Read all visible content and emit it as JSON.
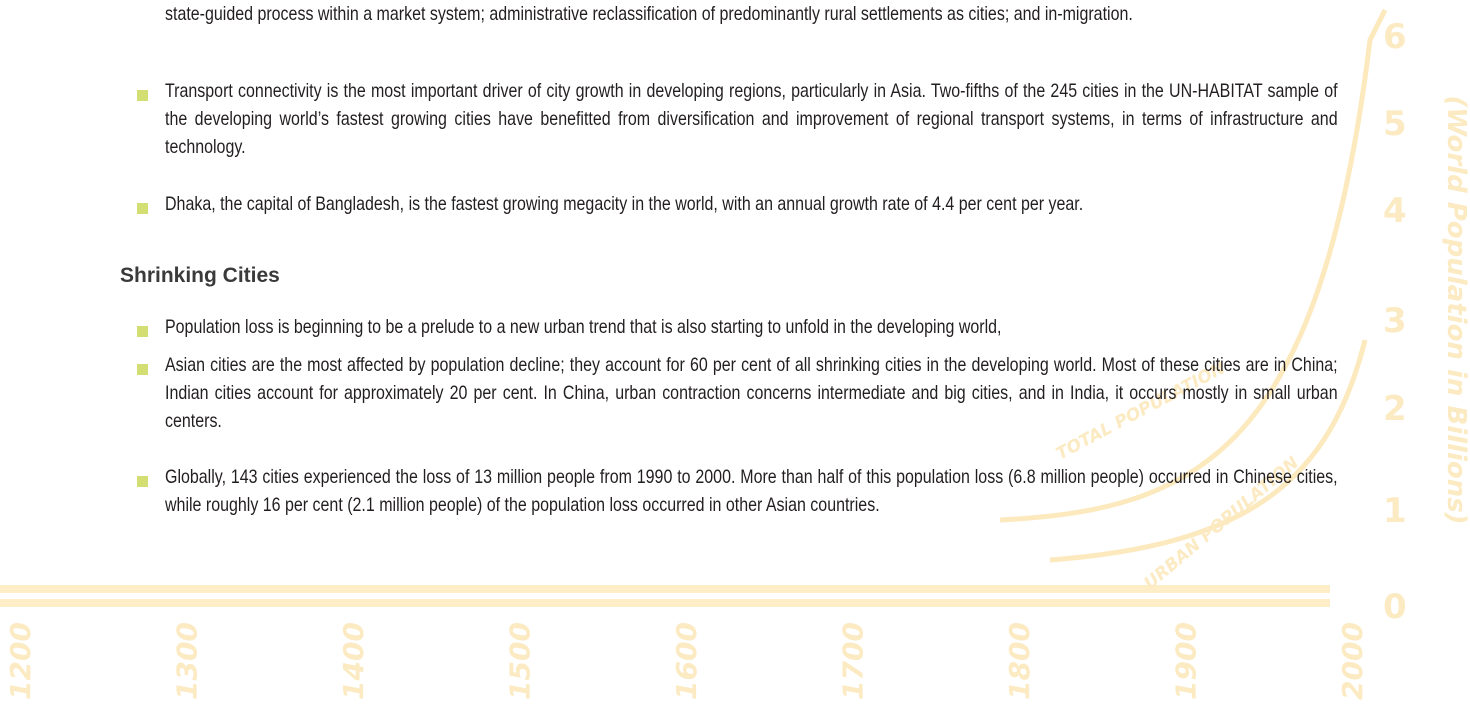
{
  "intro_tail": "state-guided process within a market system; administrative reclassification of predominantly rural settlements as cities; and in-migration.",
  "bullets_top": [
    "Transport connectivity is the most important driver of city growth in developing regions, particularly in Asia. Two-fifths of the 245 cities in the UN-HABITAT sample of the developing world’s fastest growing cities have benefitted from diversification and improvement of regional transport systems, in terms of infrastructure and technology.",
    "Dhaka, the capital of Bangladesh, is the fastest growing megacity in the world, with an annual growth rate of 4.4 per cent per year."
  ],
  "section": {
    "heading": "Shrinking Cities",
    "bullets": [
      "Population loss is beginning to be a prelude to a new urban trend that is also starting to unfold in the developing world,",
      "Asian cities are the most affected by population decline; they account for 60 per cent of all shrinking cities in the developing world. Most of these cities are in China; Indian cities account for approximately 20 per cent. In China, urban contraction concerns intermediate and big cities, and in India, it occurs mostly in small urban centers.",
      "Globally, 143 cities experienced the loss of 13 million people from 1990 to 2000. More than half of this population loss (6.8 million people) occurred in Chinese cities, while roughly 16 per cent (2.1 million people) of the population loss occurred in other Asian countries."
    ]
  },
  "background": {
    "y_labels": [
      "6",
      "5",
      "4",
      "3",
      "2",
      "1",
      "0"
    ],
    "x_labels": [
      "1200",
      "1300",
      "1400",
      "1500",
      "1600",
      "1700",
      "1800",
      "1900",
      "2000"
    ],
    "axis_title": "(World Population in Billions)",
    "curve_labels": [
      "TOTAL POPULATION",
      "URBAN POPULATION"
    ]
  }
}
